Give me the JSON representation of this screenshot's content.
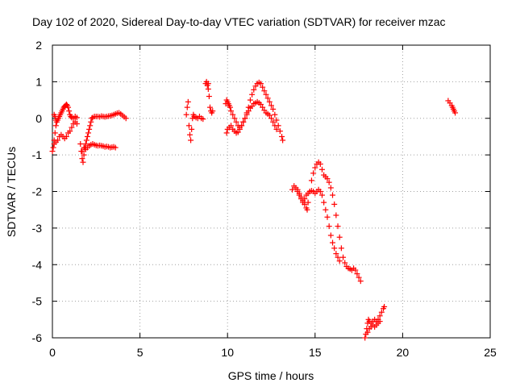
{
  "chart_data": {
    "type": "scatter",
    "title": "Day 102 of 2020, Sidereal Day-to-day VTEC variation (SDTVAR) for receiver mzac",
    "xlabel": "GPS time / hours",
    "ylabel": "SDTVAR / TECUs",
    "xlim": [
      0,
      25
    ],
    "ylim": [
      -6,
      2
    ],
    "xticks": [
      "0",
      "5",
      "10",
      "15",
      "20",
      "25"
    ],
    "yticks": [
      "2",
      "1",
      "0",
      "-1",
      "-2",
      "-3",
      "-4",
      "-5",
      "-6"
    ],
    "grid": true,
    "marker": "+",
    "color": "#ff0000",
    "series": [
      {
        "points": [
          [
            0.0,
            -0.9
          ],
          [
            0.05,
            -0.8
          ],
          [
            0.1,
            -0.6
          ],
          [
            0.15,
            -0.4
          ],
          [
            0.2,
            -0.2
          ],
          [
            0.25,
            -0.1
          ],
          [
            0.3,
            -0.05
          ],
          [
            0.35,
            0.0
          ],
          [
            0.4,
            0.05
          ],
          [
            0.45,
            0.1
          ],
          [
            0.5,
            0.15
          ],
          [
            0.55,
            0.2
          ],
          [
            0.6,
            0.25
          ],
          [
            0.65,
            0.3
          ],
          [
            0.7,
            0.33
          ],
          [
            0.75,
            0.35
          ],
          [
            0.8,
            0.38
          ],
          [
            0.85,
            0.35
          ],
          [
            0.9,
            0.3
          ],
          [
            0.95,
            0.2
          ],
          [
            1.0,
            0.1
          ],
          [
            1.05,
            0.05
          ],
          [
            1.1,
            0.02
          ],
          [
            1.2,
            0.0
          ],
          [
            1.3,
            0.05
          ],
          [
            1.4,
            0.02
          ],
          [
            0.1,
            -0.7
          ],
          [
            0.2,
            -0.65
          ],
          [
            0.3,
            -0.6
          ],
          [
            0.4,
            -0.5
          ],
          [
            0.5,
            -0.45
          ],
          [
            0.6,
            -0.5
          ],
          [
            0.7,
            -0.55
          ],
          [
            0.8,
            -0.5
          ],
          [
            0.9,
            -0.4
          ],
          [
            1.0,
            -0.35
          ],
          [
            1.1,
            -0.25
          ],
          [
            1.2,
            -0.15
          ],
          [
            1.3,
            -0.1
          ],
          [
            1.4,
            -0.15
          ],
          [
            0.1,
            0.1
          ],
          [
            0.15,
            0.05
          ],
          [
            0.2,
            -0.05
          ],
          [
            1.6,
            -0.7
          ],
          [
            1.65,
            -0.9
          ],
          [
            1.7,
            -1.1
          ],
          [
            1.75,
            -1.2
          ],
          [
            1.8,
            -1.0
          ],
          [
            1.85,
            -0.8
          ],
          [
            1.9,
            -0.7
          ],
          [
            1.95,
            -0.6
          ],
          [
            2.0,
            -0.5
          ],
          [
            2.05,
            -0.4
          ],
          [
            2.1,
            -0.3
          ],
          [
            2.15,
            -0.2
          ],
          [
            2.2,
            -0.1
          ],
          [
            2.25,
            0.0
          ],
          [
            2.3,
            0.02
          ],
          [
            2.4,
            0.05
          ],
          [
            2.5,
            0.05
          ],
          [
            2.6,
            0.05
          ],
          [
            2.7,
            0.04
          ],
          [
            2.8,
            0.06
          ],
          [
            2.9,
            0.05
          ],
          [
            3.0,
            0.04
          ],
          [
            3.1,
            0.05
          ],
          [
            3.2,
            0.06
          ],
          [
            3.3,
            0.07
          ],
          [
            3.4,
            0.08
          ],
          [
            3.5,
            0.1
          ],
          [
            3.6,
            0.12
          ],
          [
            3.7,
            0.14
          ],
          [
            3.8,
            0.15
          ],
          [
            3.9,
            0.12
          ],
          [
            4.0,
            0.08
          ],
          [
            4.1,
            0.04
          ],
          [
            4.2,
            0.0
          ],
          [
            1.7,
            -0.9
          ],
          [
            1.8,
            -0.8
          ],
          [
            1.9,
            -0.85
          ],
          [
            2.0,
            -0.8
          ],
          [
            2.1,
            -0.75
          ],
          [
            2.2,
            -0.72
          ],
          [
            2.3,
            -0.7
          ],
          [
            2.4,
            -0.72
          ],
          [
            2.5,
            -0.74
          ],
          [
            2.6,
            -0.75
          ],
          [
            2.7,
            -0.74
          ],
          [
            2.8,
            -0.75
          ],
          [
            2.9,
            -0.76
          ],
          [
            3.0,
            -0.78
          ],
          [
            3.1,
            -0.77
          ],
          [
            3.2,
            -0.78
          ],
          [
            3.3,
            -0.8
          ],
          [
            3.4,
            -0.79
          ],
          [
            3.5,
            -0.78
          ],
          [
            3.6,
            -0.8
          ]
        ]
      },
      {
        "points": [
          [
            7.65,
            0.1
          ],
          [
            7.7,
            0.3
          ],
          [
            7.75,
            0.45
          ],
          [
            7.8,
            -0.2
          ],
          [
            7.85,
            -0.45
          ],
          [
            7.9,
            -0.6
          ],
          [
            7.95,
            -0.3
          ],
          [
            8.0,
            0.0
          ],
          [
            8.05,
            0.1
          ],
          [
            8.1,
            0.05
          ],
          [
            8.2,
            0.02
          ],
          [
            8.3,
            0.0
          ],
          [
            8.4,
            0.05
          ],
          [
            8.5,
            0.0
          ],
          [
            8.6,
            -0.02
          ]
        ]
      },
      {
        "points": [
          [
            8.75,
            0.95
          ],
          [
            8.8,
            1.0
          ],
          [
            8.85,
            0.9
          ],
          [
            8.9,
            0.8
          ],
          [
            8.95,
            0.6
          ],
          [
            9.0,
            0.3
          ],
          [
            9.05,
            0.2
          ],
          [
            9.1,
            0.15
          ],
          [
            9.15,
            0.2
          ],
          [
            8.9,
            0.95
          ]
        ]
      },
      {
        "points": [
          [
            9.9,
            0.4
          ],
          [
            9.95,
            0.5
          ],
          [
            10.0,
            0.45
          ],
          [
            10.05,
            0.4
          ],
          [
            10.1,
            0.35
          ],
          [
            10.15,
            0.3
          ],
          [
            10.2,
            0.2
          ],
          [
            10.3,
            0.1
          ],
          [
            10.4,
            0.0
          ],
          [
            10.5,
            -0.1
          ],
          [
            10.6,
            -0.2
          ],
          [
            10.7,
            -0.25
          ],
          [
            10.8,
            -0.2
          ],
          [
            10.9,
            -0.1
          ],
          [
            11.0,
            0.0
          ],
          [
            11.1,
            0.15
          ],
          [
            11.2,
            0.3
          ],
          [
            11.3,
            0.5
          ],
          [
            11.4,
            0.65
          ],
          [
            11.5,
            0.78
          ],
          [
            11.6,
            0.88
          ],
          [
            11.7,
            0.95
          ],
          [
            11.8,
            0.98
          ],
          [
            11.9,
            0.95
          ],
          [
            12.0,
            0.85
          ],
          [
            12.1,
            0.75
          ],
          [
            12.2,
            0.65
          ],
          [
            12.3,
            0.55
          ],
          [
            12.4,
            0.45
          ],
          [
            12.5,
            0.35
          ],
          [
            12.6,
            0.25
          ],
          [
            12.7,
            0.1
          ],
          [
            12.8,
            -0.05
          ],
          [
            12.9,
            -0.2
          ],
          [
            13.0,
            -0.35
          ],
          [
            13.1,
            -0.5
          ],
          [
            13.15,
            -0.6
          ],
          [
            9.95,
            -0.4
          ],
          [
            10.0,
            -0.3
          ],
          [
            10.1,
            -0.25
          ],
          [
            10.2,
            -0.2
          ],
          [
            10.3,
            -0.3
          ],
          [
            10.4,
            -0.35
          ],
          [
            10.5,
            -0.4
          ],
          [
            10.6,
            -0.38
          ],
          [
            10.7,
            -0.3
          ],
          [
            10.8,
            -0.2
          ],
          [
            10.9,
            -0.1
          ],
          [
            11.0,
            0.0
          ],
          [
            11.1,
            0.1
          ],
          [
            11.2,
            0.2
          ],
          [
            11.3,
            0.28
          ],
          [
            11.4,
            0.33
          ],
          [
            11.5,
            0.4
          ],
          [
            11.6,
            0.42
          ],
          [
            11.7,
            0.45
          ],
          [
            11.8,
            0.42
          ],
          [
            11.9,
            0.38
          ],
          [
            12.0,
            0.3
          ],
          [
            12.1,
            0.22
          ],
          [
            12.2,
            0.15
          ],
          [
            12.3,
            0.12
          ],
          [
            12.4,
            0.08
          ],
          [
            12.5,
            0.0
          ],
          [
            12.6,
            -0.1
          ],
          [
            12.7,
            -0.2
          ],
          [
            12.8,
            -0.3
          ]
        ]
      },
      {
        "points": [
          [
            13.7,
            -1.95
          ],
          [
            13.8,
            -1.85
          ],
          [
            13.9,
            -1.9
          ],
          [
            14.0,
            -1.95
          ],
          [
            14.1,
            -2.05
          ],
          [
            14.2,
            -2.15
          ],
          [
            14.3,
            -2.25
          ],
          [
            14.4,
            -2.35
          ],
          [
            14.5,
            -2.45
          ],
          [
            14.55,
            -2.5
          ],
          [
            14.6,
            -2.3
          ],
          [
            14.7,
            -2.0
          ],
          [
            14.8,
            -1.7
          ],
          [
            14.9,
            -1.5
          ],
          [
            15.0,
            -1.35
          ],
          [
            15.1,
            -1.25
          ],
          [
            15.2,
            -1.2
          ],
          [
            15.3,
            -1.25
          ],
          [
            15.4,
            -1.4
          ],
          [
            15.5,
            -1.55
          ],
          [
            15.6,
            -1.6
          ],
          [
            15.7,
            -1.65
          ],
          [
            15.8,
            -1.75
          ],
          [
            15.9,
            -1.9
          ],
          [
            16.0,
            -2.1
          ],
          [
            16.1,
            -2.35
          ],
          [
            16.2,
            -2.65
          ],
          [
            16.3,
            -2.95
          ],
          [
            16.4,
            -3.25
          ],
          [
            16.5,
            -3.55
          ],
          [
            16.6,
            -3.8
          ],
          [
            16.7,
            -3.95
          ],
          [
            16.8,
            -4.05
          ],
          [
            16.9,
            -4.1
          ],
          [
            17.0,
            -4.12
          ],
          [
            17.1,
            -4.15
          ],
          [
            17.2,
            -4.1
          ],
          [
            17.3,
            -4.15
          ],
          [
            17.4,
            -4.25
          ],
          [
            17.5,
            -4.35
          ],
          [
            17.6,
            -4.45
          ],
          [
            14.0,
            -2.0
          ],
          [
            14.1,
            -2.1
          ],
          [
            14.2,
            -2.2
          ],
          [
            14.3,
            -2.3
          ],
          [
            14.4,
            -2.2
          ],
          [
            14.5,
            -2.1
          ],
          [
            14.6,
            -2.05
          ],
          [
            14.7,
            -2.0
          ],
          [
            14.8,
            -1.98
          ],
          [
            14.9,
            -2.0
          ],
          [
            15.0,
            -2.05
          ],
          [
            15.1,
            -2.0
          ],
          [
            15.2,
            -1.95
          ],
          [
            15.3,
            -2.0
          ],
          [
            15.4,
            -2.1
          ],
          [
            15.5,
            -2.3
          ],
          [
            15.6,
            -2.5
          ],
          [
            15.7,
            -2.7
          ],
          [
            15.8,
            -2.95
          ],
          [
            15.9,
            -3.2
          ],
          [
            16.0,
            -3.4
          ],
          [
            16.1,
            -3.55
          ],
          [
            16.2,
            -3.7
          ],
          [
            16.3,
            -3.8
          ],
          [
            16.4,
            -3.9
          ]
        ]
      },
      {
        "points": [
          [
            17.85,
            -6.0
          ],
          [
            17.9,
            -5.9
          ],
          [
            17.95,
            -5.75
          ],
          [
            18.0,
            -5.6
          ],
          [
            18.05,
            -5.5
          ],
          [
            18.1,
            -5.55
          ],
          [
            18.2,
            -5.6
          ],
          [
            18.3,
            -5.55
          ],
          [
            18.4,
            -5.5
          ],
          [
            18.5,
            -5.55
          ],
          [
            18.6,
            -5.5
          ],
          [
            18.7,
            -5.4
          ],
          [
            18.8,
            -5.3
          ],
          [
            18.9,
            -5.2
          ],
          [
            18.95,
            -5.15
          ],
          [
            18.0,
            -5.85
          ],
          [
            18.1,
            -5.75
          ],
          [
            18.2,
            -5.7
          ],
          [
            18.3,
            -5.65
          ],
          [
            18.4,
            -5.7
          ],
          [
            18.5,
            -5.65
          ],
          [
            18.6,
            -5.6
          ],
          [
            18.7,
            -5.55
          ]
        ]
      },
      {
        "points": [
          [
            22.6,
            0.48
          ],
          [
            22.7,
            0.42
          ],
          [
            22.8,
            0.35
          ],
          [
            22.85,
            0.3
          ],
          [
            22.9,
            0.25
          ],
          [
            22.95,
            0.2
          ],
          [
            23.0,
            0.15
          ]
        ]
      }
    ]
  }
}
